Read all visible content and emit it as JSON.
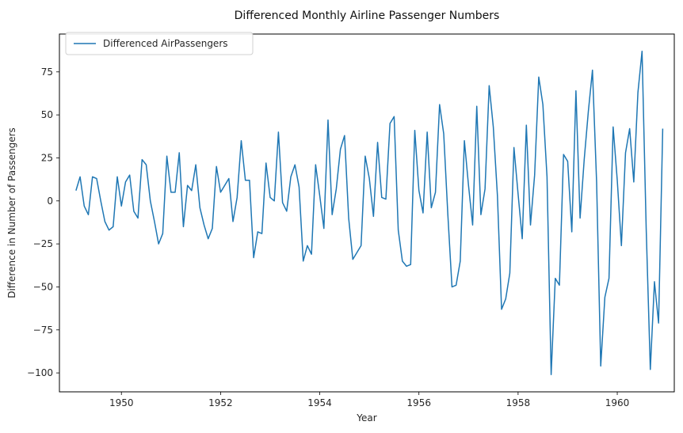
{
  "chart_data": {
    "type": "line",
    "title": "Differenced Monthly Airline Passenger Numbers",
    "xlabel": "Year",
    "ylabel": "Difference in Number of Passengers",
    "xlim": [
      1948.75,
      1961.15
    ],
    "ylim": [
      -111,
      97
    ],
    "x_ticks": [
      1950,
      1952,
      1954,
      1956,
      1958,
      1960
    ],
    "x_tick_labels": [
      "1950",
      "1952",
      "1954",
      "1956",
      "1958",
      "1960"
    ],
    "y_ticks": [
      -100,
      -75,
      -50,
      -25,
      0,
      25,
      50,
      75
    ],
    "y_tick_labels": [
      "−100",
      "−75",
      "−50",
      "−25",
      "0",
      "25",
      "50",
      "75"
    ],
    "grid": false,
    "legend_position": "top-left",
    "colors": {
      "line": "#1f77b4",
      "axis": "#000000"
    },
    "series": [
      {
        "name": "Differenced AirPassengers",
        "start_year": 1949,
        "start_month": 2,
        "values": [
          6,
          14,
          -3,
          -8,
          14,
          13,
          0,
          -12,
          -17,
          -15,
          14,
          -3,
          11,
          15,
          -6,
          -10,
          24,
          21,
          0,
          -12,
          -25,
          -19,
          26,
          5,
          5,
          28,
          -15,
          9,
          6,
          21,
          -4,
          -14,
          -22,
          -16,
          20,
          5,
          9,
          13,
          -12,
          2,
          35,
          12,
          12,
          -33,
          -18,
          -19,
          22,
          2,
          0,
          40,
          -1,
          -6,
          14,
          21,
          8,
          -35,
          -26,
          -31,
          21,
          3,
          -16,
          47,
          -8,
          7,
          30,
          38,
          -10,
          -34,
          -30,
          -26,
          26,
          13,
          -9,
          34,
          2,
          1,
          45,
          49,
          -17,
          -35,
          -38,
          -37,
          41,
          6,
          -7,
          40,
          -4,
          5,
          56,
          39,
          -8,
          -50,
          -49,
          -35,
          35,
          9,
          -14,
          55,
          -8,
          7,
          67,
          43,
          3,
          -63,
          -57,
          -42,
          31,
          4,
          -22,
          44,
          -14,
          15,
          72,
          56,
          14,
          -101,
          -45,
          -49,
          27,
          23,
          -18,
          64,
          -10,
          24,
          52,
          76,
          11,
          -96,
          -56,
          -45,
          43,
          12,
          -26,
          28,
          42,
          11,
          63,
          87,
          -16,
          -98,
          -47,
          -71,
          42
        ]
      }
    ]
  }
}
